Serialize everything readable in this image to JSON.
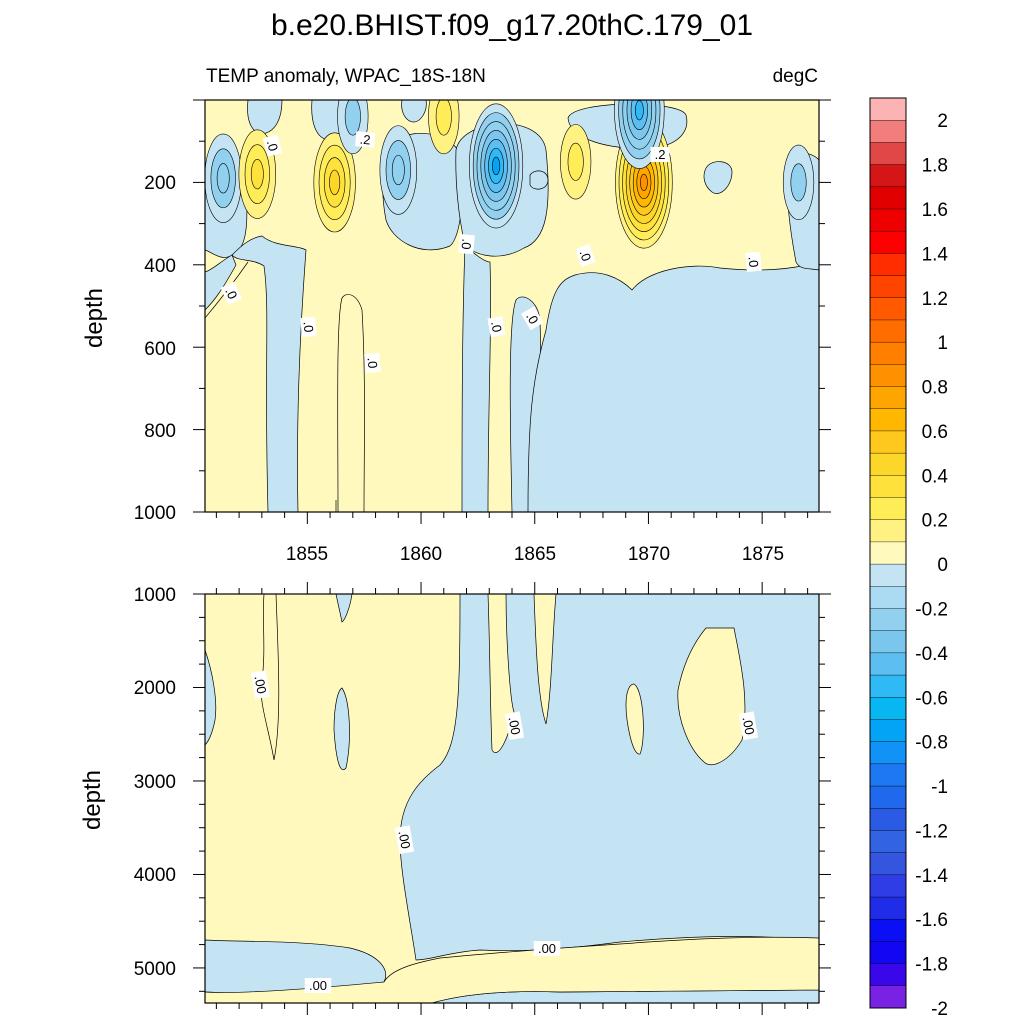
{
  "figure": {
    "title": "b.e20.BHIST.f09_g17.20thC.179_01",
    "subtitle_left": "TEMP anomaly, WPAC_18S-18N",
    "subtitle_right": "degC"
  },
  "colors": {
    "positive_fill": "#fff9bd",
    "negative_fill": "#c4e4f4"
  },
  "chart_data": [
    {
      "type": "contour",
      "panel": "upper",
      "ylabel": "depth",
      "y_reversed": true,
      "xlim": [
        1850.5,
        1877.5
      ],
      "ylim": [
        0,
        1000
      ],
      "x_ticks": [
        1855,
        1860,
        1865,
        1870,
        1875
      ],
      "x_tick_labels": [
        "1855",
        "1860",
        "1865",
        "1870",
        "1875"
      ],
      "y_ticks": [
        200,
        400,
        600,
        800,
        1000
      ],
      "y_tick_labels": [
        "200",
        "400",
        "600",
        "800",
        "1000"
      ],
      "contour_interval": 0.1,
      "zero_line_label": ".0",
      "pos_line_label": ".2",
      "neg_regions": [
        {
          "x0": 1850.5,
          "x1": 1853.0,
          "y_top": 170,
          "y_bot": 330,
          "bottom_slope": true
        },
        {
          "x0": 1853.0,
          "x1": 1855.0,
          "y_top": 330,
          "y_bot": 1000
        },
        {
          "x0": 1857.3,
          "x1": 1860.5,
          "y_top": 50,
          "y_bot": 250
        },
        {
          "x0": 1861.8,
          "x1": 1866.2,
          "y_top": 30,
          "y_bot": 320
        },
        {
          "x0": 1862.0,
          "x1": 1863.5,
          "y_top": 320,
          "y_bot": 1000
        },
        {
          "x0": 1864.2,
          "x1": 1865.0,
          "y_top": 480,
          "y_bot": 1000
        },
        {
          "x0": 1865.5,
          "x1": 1877.5,
          "y_top": 290,
          "y_bot": 1000
        },
        {
          "x0": 1867.3,
          "x1": 1872.0,
          "y_top": 0,
          "y_bot": 100
        },
        {
          "x0": 1873.8,
          "x1": 1875.3,
          "y_top": 120,
          "y_bot": 230
        },
        {
          "x0": 1876.0,
          "x1": 1877.5,
          "y_top": 110,
          "y_bot": 400
        }
      ],
      "pos_pockets": [
        {
          "x0": 1856.1,
          "x1": 1856.9,
          "y_top": 480,
          "y_bot": 1000
        }
      ],
      "centers": [
        {
          "x": 1851.3,
          "y": 190,
          "value": -0.3
        },
        {
          "x": 1852.8,
          "y": 180,
          "value": 0.3
        },
        {
          "x": 1856.2,
          "y": 200,
          "value": 0.4
        },
        {
          "x": 1859.0,
          "y": 170,
          "value": -0.3
        },
        {
          "x": 1863.3,
          "y": 160,
          "value": -0.7
        },
        {
          "x": 1869.8,
          "y": 200,
          "value": 0.8
        },
        {
          "x": 1869.6,
          "y": 25,
          "value": -0.6
        },
        {
          "x": 1857.0,
          "y": 40,
          "value": -0.2
        },
        {
          "x": 1861.0,
          "y": 40,
          "value": 0.2
        },
        {
          "x": 1866.8,
          "y": 150,
          "value": 0.2
        },
        {
          "x": 1876.6,
          "y": 200,
          "value": -0.2
        }
      ]
    },
    {
      "type": "contour",
      "panel": "lower",
      "ylabel": "depth",
      "y_reversed": true,
      "xlim": [
        1850.5,
        1877.5
      ],
      "ylim": [
        1000,
        5375
      ],
      "y_ticks": [
        1000,
        2000,
        3000,
        4000,
        5000
      ],
      "y_tick_labels": [
        "1000",
        "2000",
        "3000",
        "4000",
        "5000"
      ],
      "contour_interval": 0.01,
      "zero_line_label": ".00",
      "notes": "Weak anomalies; mostly zero-contour boundary between slightly positive (left/upper) and slightly negative (right/lower) water, with a negative band near 5000 m."
    }
  ],
  "colorbar": {
    "labels": [
      "2",
      "1.8",
      "1.6",
      "1.4",
      "1.2",
      "1",
      "0.8",
      "0.6",
      "0.4",
      "0.2",
      "0",
      "-0.2",
      "-0.4",
      "-0.6",
      "-0.8",
      "-1",
      "-1.2",
      "-1.4",
      "-1.6",
      "-1.8",
      "-2"
    ],
    "colors": [
      "#fbb3b3",
      "#f17d7d",
      "#e04848",
      "#d41616",
      "#e10000",
      "#ef0000",
      "#ff0000",
      "#ff2d00",
      "#ff4400",
      "#ff5a00",
      "#ff6c00",
      "#ff8000",
      "#ff9100",
      "#ffa500",
      "#ffb700",
      "#fec81c",
      "#fdd62a",
      "#fee23b",
      "#ffed58",
      "#fff283",
      "#fff9bd",
      "#c4e4f4",
      "#abdbf2",
      "#91d0ee",
      "#7bc6ed",
      "#5cbef1",
      "#2fb9f5",
      "#07b7f2",
      "#03a4f6",
      "#1092f6",
      "#1e78f1",
      "#2169ec",
      "#2a5be5",
      "#3163e3",
      "#3455df",
      "#2e3de6",
      "#1f2de9",
      "#0b10f4",
      "#1206f3",
      "#3a06ea",
      "#7a22e3"
    ]
  }
}
